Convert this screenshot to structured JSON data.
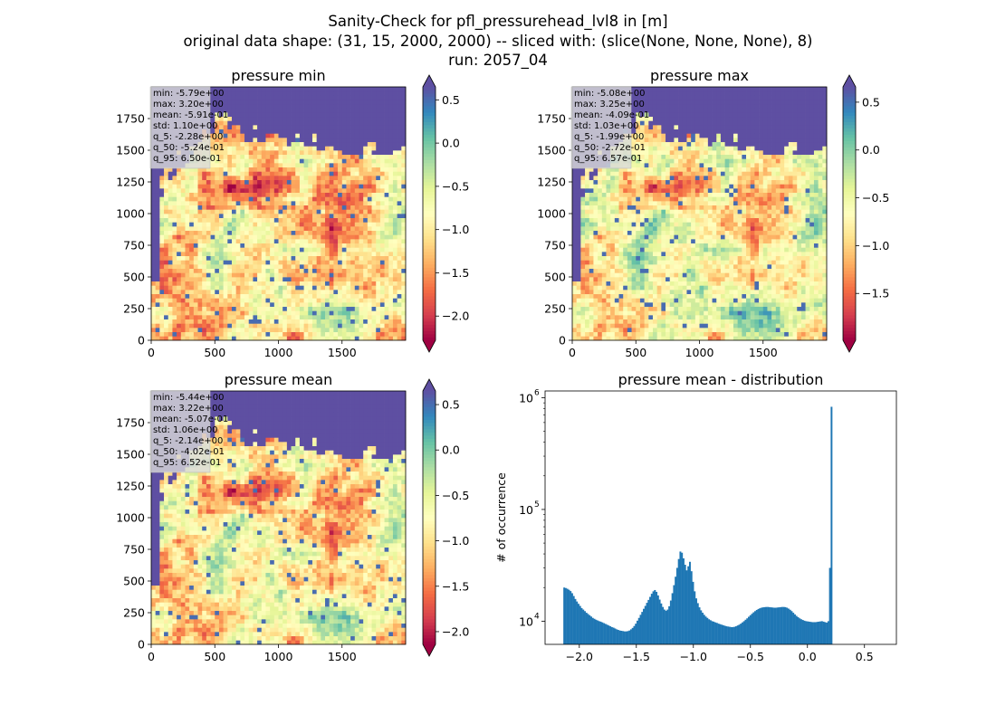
{
  "figure": {
    "suptitle_lines": [
      "Sanity-Check for pfl_pressurehead_lvl8 in [m]",
      "original data shape: (31, 15, 2000, 2000) -- sliced with: (slice(None, None, None), 8)",
      "run: 2057_04"
    ]
  },
  "colors": {
    "spectral": [
      "#9e0142",
      "#d53e4f",
      "#f46d43",
      "#fdae61",
      "#fee08b",
      "#ffffbf",
      "#e6f598",
      "#abdda4",
      "#66c2a5",
      "#3288bd",
      "#5e4fa2"
    ],
    "water": "#5e4fa2",
    "hist_bar": "#1f77b4"
  },
  "chart_data": [
    {
      "type": "heatmap",
      "title": "pressure min",
      "xticks": [
        "0",
        "500",
        "1000",
        "1500"
      ],
      "yticks": [
        "0",
        "250",
        "500",
        "750",
        "1000",
        "1250",
        "1500",
        "1750"
      ],
      "xlim": [
        0,
        2000
      ],
      "ylim": [
        0,
        2000
      ],
      "colorbar": {
        "range": [
          -2.28,
          0.65
        ],
        "ticks": [
          0.5,
          0.0,
          -0.5,
          -1.0,
          -1.5,
          -2.0
        ],
        "tick_labels": [
          "0.5",
          "0.0",
          "−0.5",
          "−1.0",
          "−1.5",
          "−2.0"
        ],
        "extend": "both"
      },
      "stats": [
        "min: -5.79e+00",
        "max: 3.20e+00",
        "mean: -5.91e-01",
        "std: 1.10e+00",
        "q_5: -2.28e+00",
        "q_50: -5.24e-01",
        "q_95: 6.50e-01"
      ]
    },
    {
      "type": "heatmap",
      "title": "pressure max",
      "xticks": [
        "0",
        "500",
        "1000",
        "1500"
      ],
      "yticks": [
        "0",
        "250",
        "500",
        "750",
        "1000",
        "1250",
        "1500",
        "1750"
      ],
      "xlim": [
        0,
        2000
      ],
      "ylim": [
        0,
        2000
      ],
      "colorbar": {
        "range": [
          -1.99,
          0.66
        ],
        "ticks": [
          0.5,
          0.0,
          -0.5,
          -1.0,
          -1.5
        ],
        "tick_labels": [
          "0.5",
          "0.0",
          "−0.5",
          "−1.0",
          "−1.5"
        ],
        "extend": "both"
      },
      "stats": [
        "min: -5.08e+00",
        "max: 3.25e+00",
        "mean: -4.09e-01",
        "std: 1.03e+00",
        "q_5: -1.99e+00",
        "q_50: -2.72e-01",
        "q_95: 6.57e-01"
      ]
    },
    {
      "type": "heatmap",
      "title": "pressure mean",
      "xticks": [
        "0",
        "500",
        "1000",
        "1500"
      ],
      "yticks": [
        "0",
        "250",
        "500",
        "750",
        "1000",
        "1250",
        "1500",
        "1750"
      ],
      "xlim": [
        0,
        2000
      ],
      "ylim": [
        0,
        2000
      ],
      "colorbar": {
        "range": [
          -2.14,
          0.65
        ],
        "ticks": [
          0.5,
          0.0,
          -0.5,
          -1.0,
          -1.5,
          -2.0
        ],
        "tick_labels": [
          "0.5",
          "0.0",
          "−0.5",
          "−1.0",
          "−1.5",
          "−2.0"
        ],
        "extend": "both"
      },
      "stats": [
        "min: -5.44e+00",
        "max: 3.22e+00",
        "mean: -5.07e-01",
        "std: 1.06e+00",
        "q_5: -2.14e+00",
        "q_50: -4.02e-01",
        "q_95: 6.52e-01"
      ]
    },
    {
      "type": "bar",
      "title": "pressure mean - distribution",
      "ylabel": "# of occurrence",
      "yscale": "log",
      "xlim": [
        -2.3,
        0.78
      ],
      "ylim": [
        6200,
        1150000
      ],
      "xticks": [
        -2.0,
        -1.5,
        -1.0,
        -0.5,
        0.0,
        0.5
      ],
      "xtick_labels": [
        "−2.0",
        "−1.5",
        "−1.0",
        "−0.5",
        "0.0",
        "0.5"
      ],
      "yticks": [
        10000,
        100000,
        1000000
      ],
      "ytick_labels": [
        "10",
        "10",
        "10"
      ],
      "ytick_exponents": [
        "4",
        "5",
        "6"
      ],
      "bin_start": -2.14,
      "bin_width": 0.01395,
      "counts": [
        20000,
        19800,
        19500,
        19100,
        18600,
        17800,
        16800,
        15800,
        15000,
        14300,
        13700,
        13100,
        12700,
        12300,
        11900,
        11600,
        11300,
        11000,
        10700,
        10500,
        10300,
        10150,
        10000,
        9900,
        9750,
        9600,
        9450,
        9300,
        9150,
        9000,
        8850,
        8750,
        8600,
        8450,
        8350,
        8250,
        8200,
        8150,
        8100,
        8100,
        8150,
        8250,
        8450,
        8700,
        9050,
        9500,
        10100,
        10700,
        11400,
        12100,
        12900,
        13700,
        14600,
        15500,
        16500,
        17600,
        18500,
        19000,
        18300,
        17000,
        15600,
        14400,
        13400,
        12700,
        12400,
        12700,
        13600,
        15300,
        17800,
        21000,
        25000,
        30000,
        36000,
        42000,
        41000,
        36500,
        32000,
        28500,
        31000,
        34000,
        28000,
        22500,
        18500,
        16000,
        14500,
        13300,
        12500,
        11900,
        11400,
        11000,
        10700,
        10400,
        10200,
        10000,
        9900,
        9750,
        9650,
        9500,
        9400,
        9300,
        9200,
        9100,
        9000,
        8950,
        8900,
        8850,
        8850,
        8900,
        9000,
        9150,
        9300,
        9500,
        9750,
        10000,
        10300,
        10600,
        10950,
        11300,
        11650,
        12000,
        12300,
        12600,
        12850,
        13050,
        13200,
        13300,
        13350,
        13400,
        13400,
        13350,
        13300,
        13250,
        13200,
        13200,
        13250,
        13300,
        13350,
        13400,
        13400,
        13350,
        13200,
        12950,
        12650,
        12300,
        11900,
        11500,
        11150,
        10850,
        10600,
        10400,
        10250,
        10100,
        10000,
        9950,
        9900,
        9850,
        9800,
        9800,
        9800,
        9850,
        9900,
        9950,
        10000,
        9900,
        9800,
        9700,
        10000,
        30000,
        830000
      ]
    }
  ]
}
